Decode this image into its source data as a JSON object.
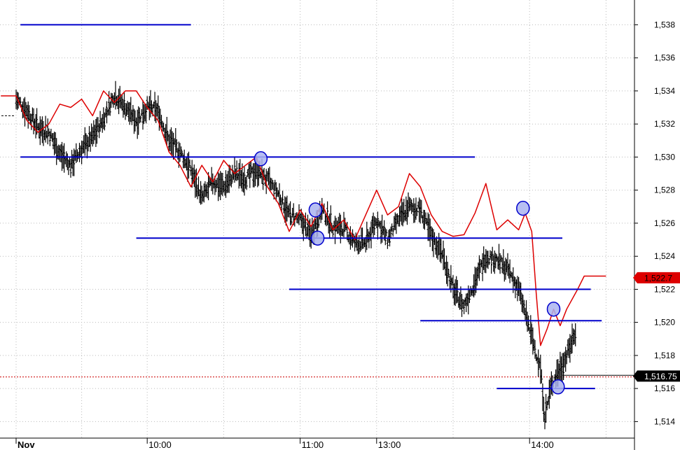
{
  "chart_data": {
    "type": "line",
    "title": "",
    "xlabel": "",
    "ylabel": "",
    "ylim": [
      1.513,
      1.5395
    ],
    "grid": true,
    "x_ticks": [
      {
        "label": "Nov",
        "t": 0,
        "bold": true
      },
      {
        "label": "10:00",
        "t": 60
      },
      {
        "label": "11:00",
        "t": 130
      },
      {
        "label": "13:00",
        "t": 165
      },
      {
        "label": "14:00",
        "t": 235
      }
    ],
    "x_grid": [
      0,
      30,
      60,
      95,
      130,
      165,
      200,
      235,
      270
    ],
    "y_ticks": [
      {
        "v": 1.514,
        "label": "1,514"
      },
      {
        "v": 1.516,
        "label": "1,516"
      },
      {
        "v": 1.518,
        "label": "1,518"
      },
      {
        "v": 1.52,
        "label": "1,520"
      },
      {
        "v": 1.522,
        "label": "1,522"
      },
      {
        "v": 1.524,
        "label": "1,524"
      },
      {
        "v": 1.526,
        "label": "1,526"
      },
      {
        "v": 1.528,
        "label": "1,528"
      },
      {
        "v": 1.53,
        "label": "1,530"
      },
      {
        "v": 1.532,
        "label": "1,532"
      },
      {
        "v": 1.534,
        "label": "1,534"
      },
      {
        "v": 1.536,
        "label": "1,536"
      },
      {
        "v": 1.538,
        "label": "1,538"
      }
    ],
    "levels": [
      {
        "y": 1.538,
        "t_start": 2,
        "t_end": 80
      },
      {
        "y": 1.53,
        "t_start": 2,
        "t_end": 210
      },
      {
        "y": 1.5251,
        "t_start": 55,
        "t_end": 250
      },
      {
        "y": 1.522,
        "t_start": 125,
        "t_end": 263
      },
      {
        "y": 1.5201,
        "t_start": 185,
        "t_end": 268
      },
      {
        "y": 1.516,
        "t_start": 220,
        "t_end": 265
      }
    ],
    "markers": [
      {
        "t": 112,
        "y": 1.5299
      },
      {
        "t": 137,
        "y": 1.5268
      },
      {
        "t": 138,
        "y": 1.5251
      },
      {
        "t": 232,
        "y": 1.5269
      },
      {
        "t": 246,
        "y": 1.5208
      },
      {
        "t": 248,
        "y": 1.5161
      }
    ],
    "ref_lines": [
      {
        "y": 1.5167,
        "color": "#cc0000",
        "style": "dashed"
      },
      {
        "y": 1.5168,
        "color": "#000000",
        "style": "solid",
        "t_start": 250
      }
    ],
    "series": [
      {
        "color": "#000000",
        "style": "bars",
        "points": [
          [
            0,
            1.5335
          ],
          [
            5,
            1.5328
          ],
          [
            10,
            1.5318
          ],
          [
            15,
            1.5315
          ],
          [
            20,
            1.5302
          ],
          [
            25,
            1.5295
          ],
          [
            30,
            1.5305
          ],
          [
            35,
            1.5312
          ],
          [
            40,
            1.5323
          ],
          [
            45,
            1.5338
          ],
          [
            50,
            1.533
          ],
          [
            55,
            1.5322
          ],
          [
            60,
            1.533
          ],
          [
            65,
            1.5328
          ],
          [
            70,
            1.531
          ],
          [
            75,
            1.5303
          ],
          [
            80,
            1.5292
          ],
          [
            85,
            1.5275
          ],
          [
            90,
            1.5285
          ],
          [
            95,
            1.5282
          ],
          [
            100,
            1.529
          ],
          [
            105,
            1.5287
          ],
          [
            110,
            1.5292
          ],
          [
            115,
            1.5286
          ],
          [
            120,
            1.5278
          ],
          [
            125,
            1.5265
          ],
          [
            130,
            1.5262
          ],
          [
            135,
            1.5253
          ],
          [
            140,
            1.5268
          ],
          [
            145,
            1.5258
          ],
          [
            150,
            1.5257
          ],
          [
            155,
            1.5248
          ],
          [
            160,
            1.5248
          ],
          [
            165,
            1.5262
          ],
          [
            170,
            1.525
          ],
          [
            175,
            1.5262
          ],
          [
            180,
            1.527
          ],
          [
            185,
            1.5268
          ],
          [
            190,
            1.5252
          ],
          [
            195,
            1.5242
          ],
          [
            200,
            1.522
          ],
          [
            205,
            1.521
          ],
          [
            210,
            1.5225
          ],
          [
            215,
            1.524
          ],
          [
            220,
            1.5238
          ],
          [
            225,
            1.5232
          ],
          [
            230,
            1.522
          ],
          [
            235,
            1.5196
          ],
          [
            240,
            1.5172
          ],
          [
            242,
            1.5143
          ],
          [
            245,
            1.5162
          ],
          [
            248,
            1.517
          ],
          [
            252,
            1.518
          ],
          [
            256,
            1.5195
          ]
        ]
      },
      {
        "color": "#dd0000",
        "style": "line",
        "points": [
          [
            -7,
            1.5337
          ],
          [
            0,
            1.5337
          ],
          [
            5,
            1.5322
          ],
          [
            10,
            1.5315
          ],
          [
            15,
            1.532
          ],
          [
            20,
            1.5332
          ],
          [
            25,
            1.533
          ],
          [
            30,
            1.5335
          ],
          [
            35,
            1.5325
          ],
          [
            40,
            1.534
          ],
          [
            45,
            1.5333
          ],
          [
            50,
            1.534
          ],
          [
            55,
            1.534
          ],
          [
            60,
            1.533
          ],
          [
            65,
            1.5322
          ],
          [
            70,
            1.5303
          ],
          [
            75,
            1.5295
          ],
          [
            80,
            1.5282
          ],
          [
            85,
            1.5295
          ],
          [
            90,
            1.5285
          ],
          [
            95,
            1.5298
          ],
          [
            100,
            1.529
          ],
          [
            105,
            1.5295
          ],
          [
            110,
            1.53
          ],
          [
            115,
            1.5282
          ],
          [
            120,
            1.5272
          ],
          [
            125,
            1.5255
          ],
          [
            130,
            1.5268
          ],
          [
            135,
            1.5258
          ],
          [
            140,
            1.5272
          ],
          [
            145,
            1.5256
          ],
          [
            150,
            1.5262
          ],
          [
            155,
            1.525
          ],
          [
            160,
            1.5265
          ],
          [
            165,
            1.528
          ],
          [
            170,
            1.5265
          ],
          [
            175,
            1.527
          ],
          [
            180,
            1.529
          ],
          [
            185,
            1.5282
          ],
          [
            190,
            1.5265
          ],
          [
            195,
            1.5255
          ],
          [
            200,
            1.5252
          ],
          [
            205,
            1.5253
          ],
          [
            210,
            1.5266
          ],
          [
            215,
            1.5284
          ],
          [
            220,
            1.5256
          ],
          [
            225,
            1.5262
          ],
          [
            230,
            1.5256
          ],
          [
            233,
            1.5266
          ],
          [
            236,
            1.5255
          ],
          [
            238,
            1.5218
          ],
          [
            240,
            1.5186
          ],
          [
            243,
            1.5196
          ],
          [
            246,
            1.5208
          ],
          [
            249,
            1.5198
          ],
          [
            252,
            1.5208
          ],
          [
            257,
            1.522
          ],
          [
            260,
            1.5228
          ],
          [
            265,
            1.5228
          ],
          [
            270,
            1.5228
          ]
        ]
      }
    ],
    "last_value_badges": [
      {
        "y": 1.5227,
        "label": "1,522.7",
        "bg": "#dd0000",
        "fg": "#000000"
      },
      {
        "y": 1.51675,
        "label": "1,516.75",
        "bg": "#000000",
        "fg": "#ffffff"
      }
    ],
    "colors": {
      "background": "#ffffff",
      "grid": "#bbbbbb",
      "level_lines": "#0000cc",
      "marker_fill": "#aab4f0",
      "marker_stroke": "#0000cc",
      "axis_panel": "#ffffff"
    }
  }
}
